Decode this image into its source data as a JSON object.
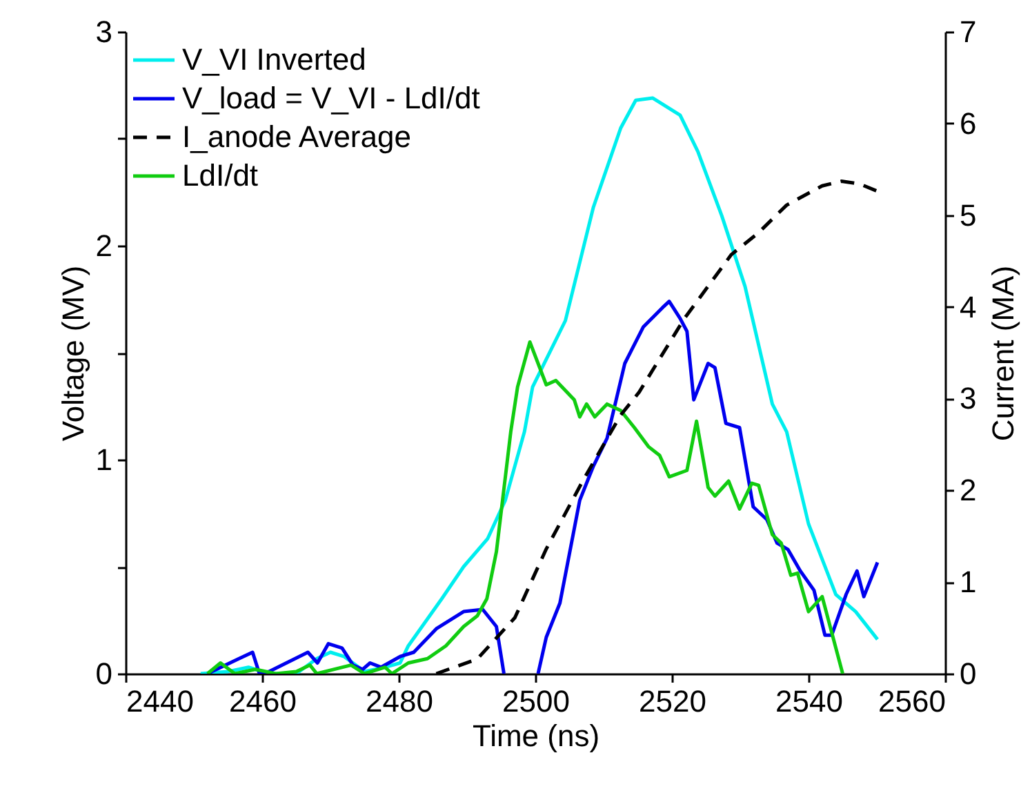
{
  "chart_data": {
    "type": "line",
    "xlabel": "Time (ns)",
    "ylabel": "Voltage (MV)",
    "y2label": "Current (MA)",
    "xlim": [
      2440,
      2560
    ],
    "xticks": [
      2440,
      2460,
      2480,
      2500,
      2520,
      2540,
      2560
    ],
    "ylim": [
      0,
      3
    ],
    "yticks": [
      0,
      {
        "value": 0.5,
        "label": null
      },
      1,
      {
        "value": 1.5,
        "label": null
      },
      2,
      {
        "value": 2.5,
        "label": null
      },
      3
    ],
    "y2lim": [
      0,
      7
    ],
    "y2ticks": [
      0,
      1,
      2,
      3,
      4,
      5,
      6,
      7
    ],
    "legend": "top left",
    "grid": false,
    "marker": "none",
    "series": [
      {
        "name": "V_VI Inverted",
        "color": "#00eeee",
        "line_style": "solid",
        "x": [
          2451,
          2455,
          2458,
          2461,
          2465,
          2468,
          2470,
          2472,
          2475,
          2478,
          2480.2,
          2481.4,
          2486.3,
          2489.5,
          2493,
          2495.6,
          2498.4,
          2499.6,
          2504.4,
          2508.5,
          2512.5,
          2514.7,
          2517.2,
          2521.2,
          2523.8,
          2527.3,
          2530.7,
          2534.7,
          2536.8,
          2540,
          2544,
          2546.9,
          2550.1
        ],
        "values": [
          0,
          0.01,
          0.03,
          0,
          0,
          0.07,
          0.1,
          0.08,
          0.01,
          0.03,
          0.05,
          0.13,
          0.35,
          0.5,
          0.63,
          0.81,
          1.13,
          1.34,
          1.65,
          2.18,
          2.55,
          2.68,
          2.69,
          2.61,
          2.44,
          2.14,
          1.81,
          1.26,
          1.13,
          0.7,
          0.37,
          0.29,
          0.16
        ]
      },
      {
        "name": "V_load = V_VI - LdI/dt",
        "color": "#0000ee",
        "line_style": "solid",
        "x": [
          2452,
          2456.6,
          2458.6,
          2459.6,
          2461,
          2466.7,
          2468.1,
          2469.7,
          2471.7,
          2473.3,
          2474.7,
          2475.8,
          2477.4,
          2480.2,
          2482.2,
          2485.5,
          2489.5,
          2492.3,
          2494.3,
          2495.4,
          2497.9,
          2500.4,
          2501.6,
          2503.6,
          2506.5,
          2508.5,
          2510.5,
          2513.1,
          2515.8,
          2518.6,
          2519.6,
          2521.2,
          2522.2,
          2523.2,
          2525.3,
          2526.3,
          2527.9,
          2529.9,
          2531.9,
          2533.9,
          2535.4,
          2537,
          2538.8,
          2540.8,
          2542.4,
          2543.4,
          2545.5,
          2547.1,
          2548.1,
          2550.1
        ],
        "values": [
          0,
          0.07,
          0.1,
          0,
          0.01,
          0.1,
          0.05,
          0.14,
          0.12,
          0.04,
          0.02,
          0.05,
          0.03,
          0.08,
          0.1,
          0.21,
          0.29,
          0.3,
          0.22,
          0,
          null,
          0,
          0.17,
          0.33,
          0.81,
          0.97,
          1.1,
          1.45,
          1.62,
          1.71,
          1.74,
          1.66,
          1.6,
          1.28,
          1.45,
          1.43,
          1.17,
          1.15,
          0.78,
          0.72,
          0.61,
          0.58,
          0.48,
          0.39,
          0.18,
          0.18,
          0.37,
          0.48,
          0.36,
          0.52
        ]
      },
      {
        "name": "I_anode Average",
        "color": "#000000",
        "line_style": "dashed",
        "axis": "y2",
        "x": [
          2485.5,
          2491.5,
          2497,
          2501.6,
          2507,
          2512.5,
          2515.2,
          2521.8,
          2528.7,
          2532.7,
          2536.8,
          2542,
          2544.8,
          2547.5,
          2550.1
        ],
        "values": [
          0,
          0.16,
          0.61,
          1.36,
          2.11,
          2.82,
          3.07,
          3.87,
          4.57,
          4.81,
          5.11,
          5.32,
          5.37,
          5.34,
          5.26
        ]
      },
      {
        "name": "LdI/dt",
        "color": "#11cc11",
        "line_style": "solid",
        "x": [
          2452,
          2453.9,
          2456,
          2459,
          2462,
          2465,
          2467,
          2468,
          2473,
          2475,
          2478,
          2479,
          2481.4,
          2484.2,
          2486.9,
          2489.5,
          2491.5,
          2492.9,
          2494.3,
          2496.4,
          2497.4,
          2499.2,
          2501.6,
          2503,
          2505.7,
          2506.5,
          2507.5,
          2508.7,
          2510.5,
          2512.5,
          2514.5,
          2516.6,
          2518.2,
          2519.6,
          2522.2,
          2523.6,
          2525.3,
          2526.3,
          2528.3,
          2529.9,
          2531.7,
          2532.7,
          2534.7,
          2536,
          2537.4,
          2538.4,
          2540,
          2542,
          2545
        ],
        "values": [
          0,
          0.05,
          0,
          0.02,
          0,
          0.01,
          0.04,
          0,
          0.04,
          0,
          0.03,
          0,
          0.05,
          0.07,
          0.13,
          0.22,
          0.27,
          0.35,
          0.57,
          1.13,
          1.34,
          1.55,
          1.35,
          1.37,
          1.28,
          1.2,
          1.26,
          1.2,
          1.26,
          1.23,
          1.15,
          1.06,
          1.02,
          0.92,
          0.95,
          1.18,
          0.87,
          0.83,
          0.9,
          0.77,
          0.89,
          0.88,
          0.65,
          0.61,
          0.46,
          0.47,
          0.29,
          0.36,
          0
        ]
      }
    ]
  }
}
